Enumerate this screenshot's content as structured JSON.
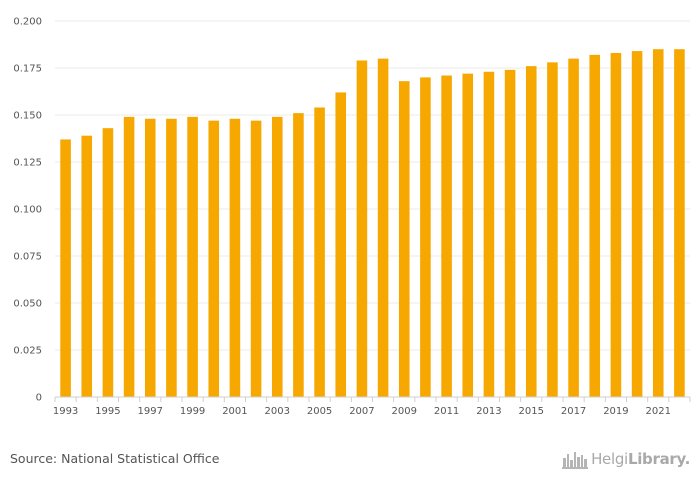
{
  "chart_data": {
    "type": "bar",
    "categories": [
      "1993",
      "1994",
      "1995",
      "1996",
      "1997",
      "1998",
      "1999",
      "2000",
      "2001",
      "2002",
      "2003",
      "2004",
      "2005",
      "2006",
      "2007",
      "2008",
      "2009",
      "2010",
      "2011",
      "2012",
      "2013",
      "2014",
      "2015",
      "2016",
      "2017",
      "2018",
      "2019",
      "2020",
      "2021",
      "2022"
    ],
    "values": [
      0.137,
      0.139,
      0.143,
      0.149,
      0.148,
      0.148,
      0.149,
      0.147,
      0.148,
      0.147,
      0.149,
      0.151,
      0.154,
      0.162,
      0.179,
      0.18,
      0.168,
      0.17,
      0.171,
      0.172,
      0.173,
      0.174,
      0.176,
      0.178,
      0.18,
      0.182,
      0.183,
      0.184,
      0.185,
      0.185
    ],
    "x_tick_labels": [
      "1993",
      "1995",
      "1997",
      "1999",
      "2001",
      "2003",
      "2005",
      "2007",
      "2009",
      "2011",
      "2013",
      "2015",
      "2017",
      "2019",
      "2021"
    ],
    "y_tick_labels": [
      "0",
      "0.025",
      "0.050",
      "0.075",
      "0.100",
      "0.125",
      "0.150",
      "0.175",
      "0.200"
    ],
    "ylim": [
      0,
      0.2
    ],
    "title": "",
    "xlabel": "",
    "ylabel": "",
    "grid": true,
    "bar_color": "#f7a800"
  },
  "footer": {
    "source": "Source: National Statistical Office",
    "brand_regular": "Helgi",
    "brand_bold": "Library."
  }
}
